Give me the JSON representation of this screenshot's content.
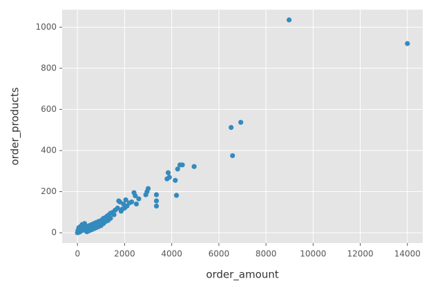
{
  "chart_data": {
    "type": "scatter",
    "x_label": "order_amount",
    "y_label": "order_products",
    "color": "#348abd",
    "grid": true,
    "xlim": [
      -650,
      14650
    ],
    "ylim": [
      -50,
      1085
    ],
    "xticks": [
      0,
      2000,
      4000,
      6000,
      8000,
      10000,
      12000,
      14000
    ],
    "yticks": [
      0,
      200,
      400,
      600,
      800,
      1000
    ],
    "x": [
      8980,
      14000,
      6520,
      6930,
      6580,
      4950,
      4450,
      4350,
      4250,
      4200,
      4150,
      3900,
      3850,
      3800,
      3350,
      3350,
      3350,
      3000,
      2950,
      2900,
      2600,
      2500,
      2450,
      2400,
      2300,
      2200,
      2100,
      2000,
      1900,
      1800,
      50,
      100,
      150,
      200,
      250,
      300,
      350,
      400,
      450,
      500,
      550,
      600,
      650,
      700,
      750,
      800,
      850,
      900,
      950,
      1000,
      1050,
      1100,
      1150,
      1200,
      1250,
      1300,
      1350,
      1400,
      1500,
      1550,
      1600,
      1700,
      1750,
      1850,
      1950,
      2050,
      120,
      200,
      300,
      400,
      500,
      600,
      700,
      800,
      900,
      1000,
      1100,
      1200,
      1300,
      1400,
      0,
      20,
      60,
      80
    ],
    "y": [
      1035,
      920,
      512,
      537,
      375,
      322,
      330,
      330,
      310,
      182,
      255,
      270,
      292,
      262,
      185,
      155,
      130,
      215,
      200,
      185,
      165,
      140,
      180,
      195,
      150,
      145,
      130,
      120,
      115,
      150,
      5,
      10,
      8,
      15,
      20,
      12,
      25,
      30,
      20,
      35,
      28,
      40,
      32,
      45,
      38,
      50,
      42,
      55,
      48,
      60,
      52,
      70,
      62,
      75,
      80,
      85,
      78,
      95,
      100,
      88,
      110,
      120,
      155,
      105,
      140,
      160,
      30,
      40,
      45,
      5,
      10,
      15,
      20,
      25,
      30,
      35,
      45,
      55,
      60,
      70,
      0,
      12,
      25,
      3
    ]
  }
}
